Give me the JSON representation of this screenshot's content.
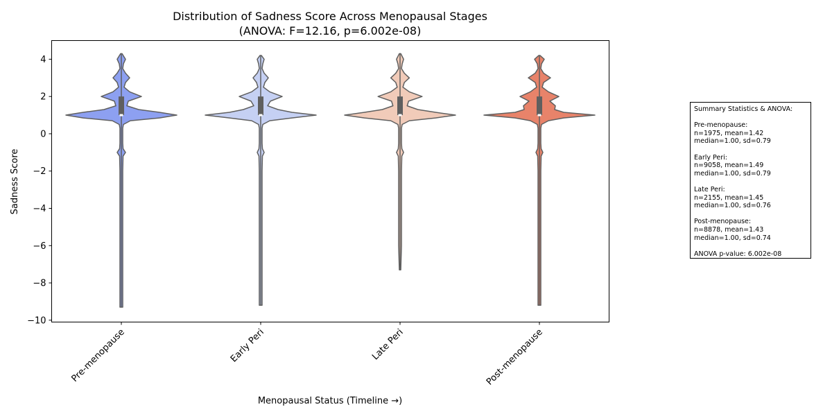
{
  "chart_data": {
    "type": "violin",
    "title": "Distribution of Sadness Score Across Menopausal Stages",
    "subtitle": "(ANOVA: F=12.16, p=6.002e-08)",
    "xlabel": "Menopausal Status (Timeline →)",
    "ylabel": "Sadness Score",
    "ylim": [
      -10.1,
      5.0
    ],
    "yticks": [
      4,
      2,
      0,
      -2,
      -4,
      -6,
      -8,
      -10
    ],
    "ytick_labels": [
      "4",
      "2",
      "0",
      "−2",
      "−4",
      "−6",
      "−8",
      "−10"
    ],
    "grid": false,
    "categories": [
      "Pre-menopause",
      "Early Peri",
      "Late Peri",
      "Post-menopause"
    ],
    "series": [
      {
        "name": "Pre-menopause",
        "color": "#8DA0F1",
        "n": 1975,
        "mean": 1.42,
        "median": 1.0,
        "sd": 0.79,
        "min": -9.3,
        "max": 4.3,
        "q1": 1.0,
        "q3": 2.0,
        "density": [
          [
            -9.3,
            0.2
          ],
          [
            -8,
            0.2
          ],
          [
            -6,
            0.2
          ],
          [
            -4,
            0.2
          ],
          [
            -2,
            0.2
          ],
          [
            -1.2,
            0.25
          ],
          [
            -1,
            0.6
          ],
          [
            -0.8,
            0.25
          ],
          [
            -0.5,
            0.2
          ],
          [
            0.3,
            0.2
          ],
          [
            0.5,
            0.3
          ],
          [
            0.7,
            1.3
          ],
          [
            0.85,
            5.5
          ],
          [
            1.0,
            8.0
          ],
          [
            1.15,
            5.5
          ],
          [
            1.3,
            2.5
          ],
          [
            1.5,
            0.8
          ],
          [
            1.75,
            1.0
          ],
          [
            2.0,
            2.9
          ],
          [
            2.25,
            1.2
          ],
          [
            2.5,
            0.4
          ],
          [
            2.75,
            0.6
          ],
          [
            3.0,
            1.2
          ],
          [
            3.25,
            0.6
          ],
          [
            3.5,
            0.2
          ],
          [
            3.75,
            0.3
          ],
          [
            4.0,
            0.6
          ],
          [
            4.3,
            0.1
          ]
        ]
      },
      {
        "name": "Early Peri",
        "color": "#C5D0F3",
        "n": 9058,
        "mean": 1.49,
        "median": 1.0,
        "sd": 0.79,
        "min": -9.2,
        "max": 4.2,
        "q1": 1.0,
        "q3": 2.0,
        "density": [
          [
            -9.2,
            0.2
          ],
          [
            -8,
            0.2
          ],
          [
            -6,
            0.2
          ],
          [
            -4,
            0.2
          ],
          [
            -2,
            0.2
          ],
          [
            -1.2,
            0.25
          ],
          [
            -1,
            0.5
          ],
          [
            -0.8,
            0.25
          ],
          [
            -0.5,
            0.2
          ],
          [
            0.3,
            0.2
          ],
          [
            0.5,
            0.3
          ],
          [
            0.7,
            1.3
          ],
          [
            0.85,
            4.5
          ],
          [
            1.0,
            8.0
          ],
          [
            1.15,
            4.5
          ],
          [
            1.3,
            2.5
          ],
          [
            1.5,
            1.0
          ],
          [
            1.75,
            1.4
          ],
          [
            2.0,
            3.1
          ],
          [
            2.25,
            1.3
          ],
          [
            2.5,
            0.4
          ],
          [
            2.75,
            0.6
          ],
          [
            3.0,
            1.1
          ],
          [
            3.25,
            0.5
          ],
          [
            3.5,
            0.2
          ],
          [
            3.75,
            0.3
          ],
          [
            4.0,
            0.5
          ],
          [
            4.2,
            0.1
          ]
        ]
      },
      {
        "name": "Late Peri",
        "color": "#F1CBB9",
        "n": 2155,
        "mean": 1.45,
        "median": 1.0,
        "sd": 0.76,
        "min": -7.3,
        "max": 4.3,
        "q1": 1.0,
        "q3": 2.0,
        "density": [
          [
            -7.3,
            0.1
          ],
          [
            -6,
            0.2
          ],
          [
            -4,
            0.2
          ],
          [
            -2,
            0.2
          ],
          [
            -1.2,
            0.25
          ],
          [
            -1,
            0.5
          ],
          [
            -0.8,
            0.25
          ],
          [
            -0.5,
            0.2
          ],
          [
            0.3,
            0.2
          ],
          [
            0.5,
            0.3
          ],
          [
            0.7,
            1.3
          ],
          [
            0.85,
            5.0
          ],
          [
            1.0,
            7.8
          ],
          [
            1.15,
            5.0
          ],
          [
            1.3,
            2.5
          ],
          [
            1.5,
            1.0
          ],
          [
            1.75,
            1.2
          ],
          [
            2.0,
            3.1
          ],
          [
            2.25,
            1.3
          ],
          [
            2.5,
            0.4
          ],
          [
            2.75,
            0.6
          ],
          [
            3.0,
            1.3
          ],
          [
            3.25,
            0.6
          ],
          [
            3.5,
            0.2
          ],
          [
            3.75,
            0.3
          ],
          [
            4.0,
            0.5
          ],
          [
            4.3,
            0.1
          ]
        ]
      },
      {
        "name": "Post-menopause",
        "color": "#E8836A",
        "n": 8878,
        "mean": 1.43,
        "median": 1.0,
        "sd": 0.74,
        "min": -9.2,
        "max": 4.2,
        "q1": 1.0,
        "q3": 2.0,
        "density": [
          [
            -9.2,
            0.2
          ],
          [
            -8,
            0.2
          ],
          [
            -6,
            0.2
          ],
          [
            -4,
            0.2
          ],
          [
            -2,
            0.2
          ],
          [
            -1.2,
            0.25
          ],
          [
            -1,
            0.5
          ],
          [
            -0.8,
            0.25
          ],
          [
            -0.5,
            0.2
          ],
          [
            0.3,
            0.2
          ],
          [
            0.5,
            0.3
          ],
          [
            0.7,
            1.3
          ],
          [
            0.85,
            3.5
          ],
          [
            1.0,
            8.0
          ],
          [
            1.15,
            3.5
          ],
          [
            1.3,
            2.2
          ],
          [
            1.5,
            2.3
          ],
          [
            1.75,
            1.5
          ],
          [
            2.0,
            2.8
          ],
          [
            2.25,
            1.3
          ],
          [
            2.5,
            0.4
          ],
          [
            2.75,
            0.6
          ],
          [
            3.0,
            1.6
          ],
          [
            3.25,
            0.6
          ],
          [
            3.5,
            0.2
          ],
          [
            3.75,
            0.3
          ],
          [
            4.0,
            0.7
          ],
          [
            4.2,
            0.1
          ]
        ]
      }
    ]
  },
  "stats_box": {
    "lines": [
      "Summary Statistics & ANOVA:",
      "",
      "Pre-menopause:",
      "n=1975, mean=1.42",
      "median=1.00, sd=0.79",
      "",
      "Early Peri:",
      "n=9058, mean=1.49",
      "median=1.00, sd=0.79",
      "",
      "Late Peri:",
      "n=2155, mean=1.45",
      "median=1.00, sd=0.76",
      "",
      "Post-menopause:",
      "n=8878, mean=1.43",
      "median=1.00, sd=0.74",
      "",
      "ANOVA p-value: 6.002e-08"
    ]
  }
}
